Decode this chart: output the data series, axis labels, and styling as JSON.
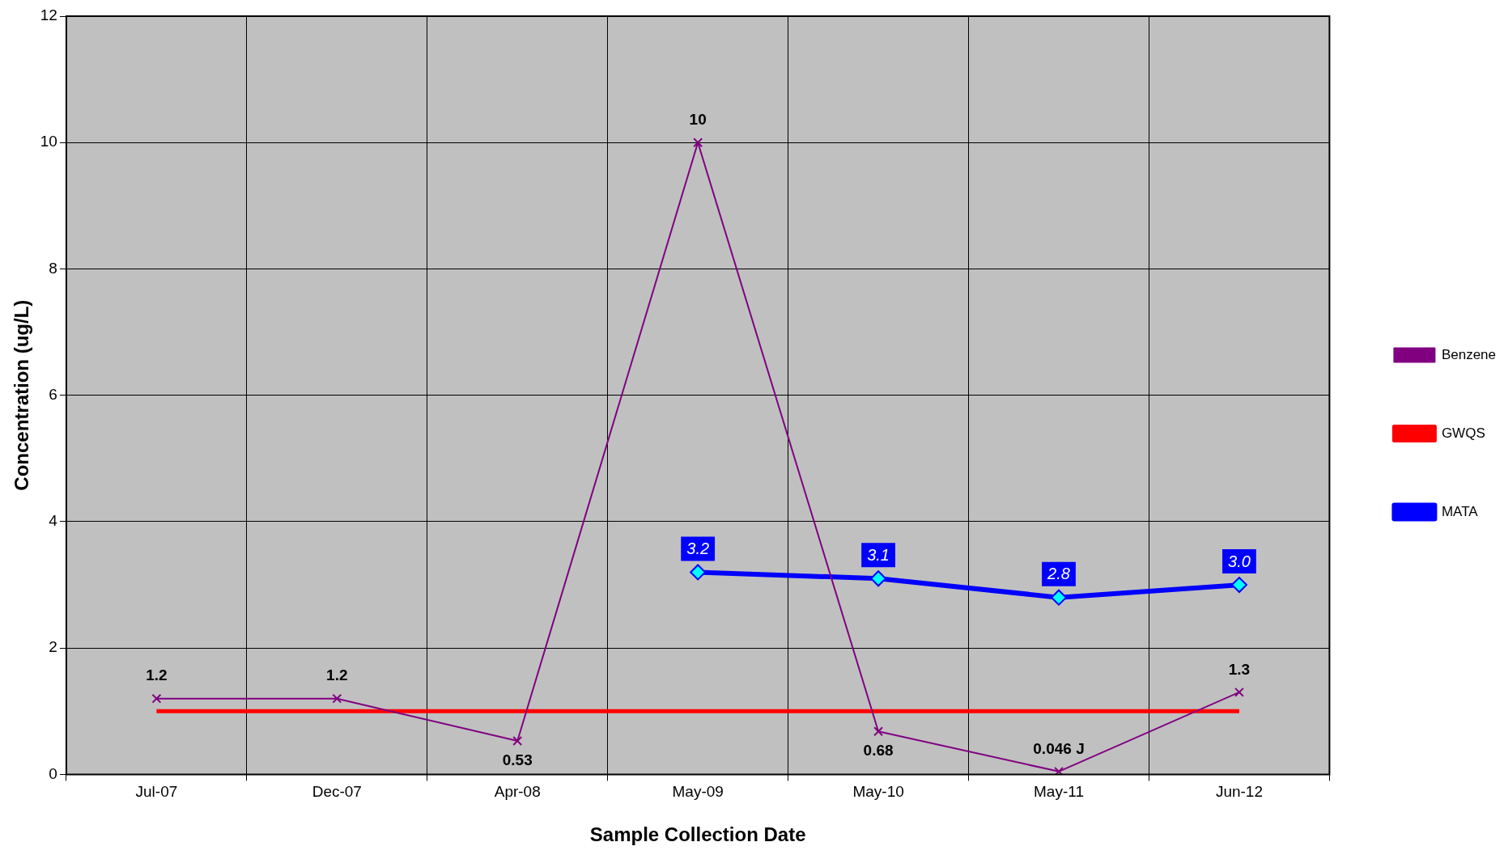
{
  "chart_data": {
    "type": "line",
    "xlabel": "Sample Collection Date",
    "ylabel": "Concentration (ug/L)",
    "categories": [
      "Jul-07",
      "Dec-07",
      "Apr-08",
      "May-09",
      "May-10",
      "May-11",
      "Jun-12"
    ],
    "series": [
      {
        "name": "Benzene",
        "color": "#800080",
        "marker": "cross",
        "values": [
          1.2,
          1.2,
          0.53,
          10,
          0.68,
          0.046,
          1.3
        ],
        "value_labels": [
          "1.2",
          "1.2",
          "0.53",
          "10",
          "0.68",
          "0.046 J",
          "1.3"
        ]
      },
      {
        "name": "GWQS",
        "color": "#ff0000",
        "marker": "none",
        "values": [
          1,
          1,
          1,
          1,
          1,
          1,
          1
        ]
      },
      {
        "name": "MATA",
        "color": "#0000ff",
        "marker": "diamond",
        "values": [
          null,
          null,
          null,
          3.2,
          3.1,
          2.8,
          3.0
        ],
        "value_labels": [
          null,
          null,
          null,
          "3.2",
          "3.1",
          "2.8",
          "3.0"
        ]
      }
    ],
    "ylim": [
      0,
      12
    ],
    "yticks": [
      0,
      2,
      4,
      6,
      8,
      10,
      12
    ],
    "grid": true,
    "legend": "right",
    "line_style": "solid"
  }
}
